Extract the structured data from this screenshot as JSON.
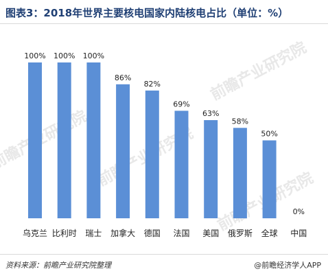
{
  "title": "图表3：2018年世界主要核电国家内陆核电占比（单位：%）",
  "source": "资料来源：前瞻产业研究院整理",
  "brand": "@前瞻经济学人APP",
  "watermark": "前瞻产业研究院",
  "colors": {
    "bar": "#5b8fd6",
    "title": "#1f3f74",
    "watermark": "#e8e8e8"
  },
  "chart_data": {
    "type": "bar",
    "title": "图表3：2018年世界主要核电国家内陆核电占比（单位：%）",
    "categories": [
      "乌克兰",
      "比利时",
      "瑞士",
      "加拿大",
      "德国",
      "法国",
      "美国",
      "俄罗斯",
      "全球",
      "中国"
    ],
    "values": [
      100,
      100,
      100,
      86,
      82,
      69,
      63,
      58,
      50,
      0
    ],
    "value_labels": [
      "100%",
      "100%",
      "100%",
      "86%",
      "82%",
      "69%",
      "63%",
      "58%",
      "50%",
      "0%"
    ],
    "ylim": [
      0,
      100
    ],
    "grid": false,
    "legend": "none"
  }
}
